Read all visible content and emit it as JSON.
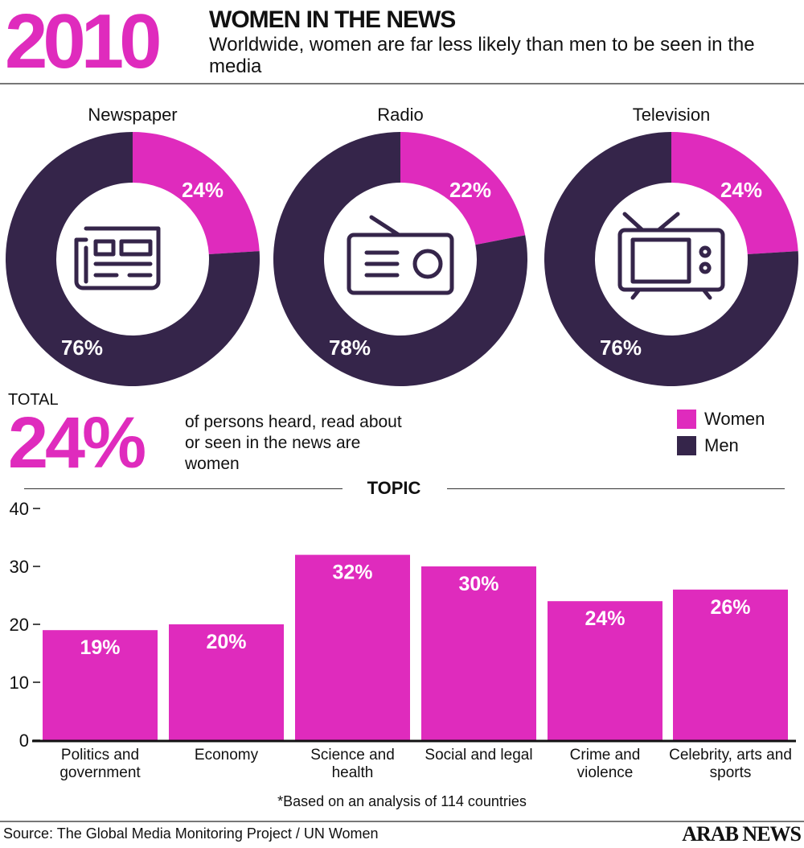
{
  "header": {
    "year": "2010",
    "title": "WOMEN IN THE NEWS",
    "subtitle": "Worldwide, women are far less likely than men to be seen in the media"
  },
  "colors": {
    "women": "#df2bbd",
    "men": "#35254a"
  },
  "donuts": [
    {
      "title": "Newspaper",
      "women": 24,
      "men": 76,
      "women_label": "24%",
      "men_label": "76%",
      "icon": "newspaper-icon"
    },
    {
      "title": "Radio",
      "women": 22,
      "men": 78,
      "women_label": "22%",
      "men_label": "78%",
      "icon": "radio-icon"
    },
    {
      "title": "Television",
      "women": 24,
      "men": 76,
      "women_label": "24%",
      "men_label": "76%",
      "icon": "tv-icon"
    }
  ],
  "total": {
    "label": "TOTAL",
    "value": "24%",
    "description": "of persons heard, read about or seen in the news are women"
  },
  "legend": [
    {
      "label": "Women"
    },
    {
      "label": "Men"
    }
  ],
  "chart_data": {
    "type": "bar",
    "title": "TOPIC",
    "categories": [
      "Politics and government",
      "Economy",
      "Science and health",
      "Social and legal",
      "Crime and violence",
      "Celebrity, arts and sports"
    ],
    "values": [
      19,
      20,
      32,
      30,
      24,
      26
    ],
    "data_labels": [
      "19%",
      "20%",
      "32%",
      "30%",
      "24%",
      "26%"
    ],
    "yticks": [
      "0",
      "10",
      "20",
      "30",
      "40"
    ],
    "ylim": [
      0,
      40
    ],
    "grid": false
  },
  "note": "*Based on an analysis of 114 countries",
  "source": "Source: The Global Media Monitoring Project / UN Women",
  "logo": "ARAB NEWS"
}
